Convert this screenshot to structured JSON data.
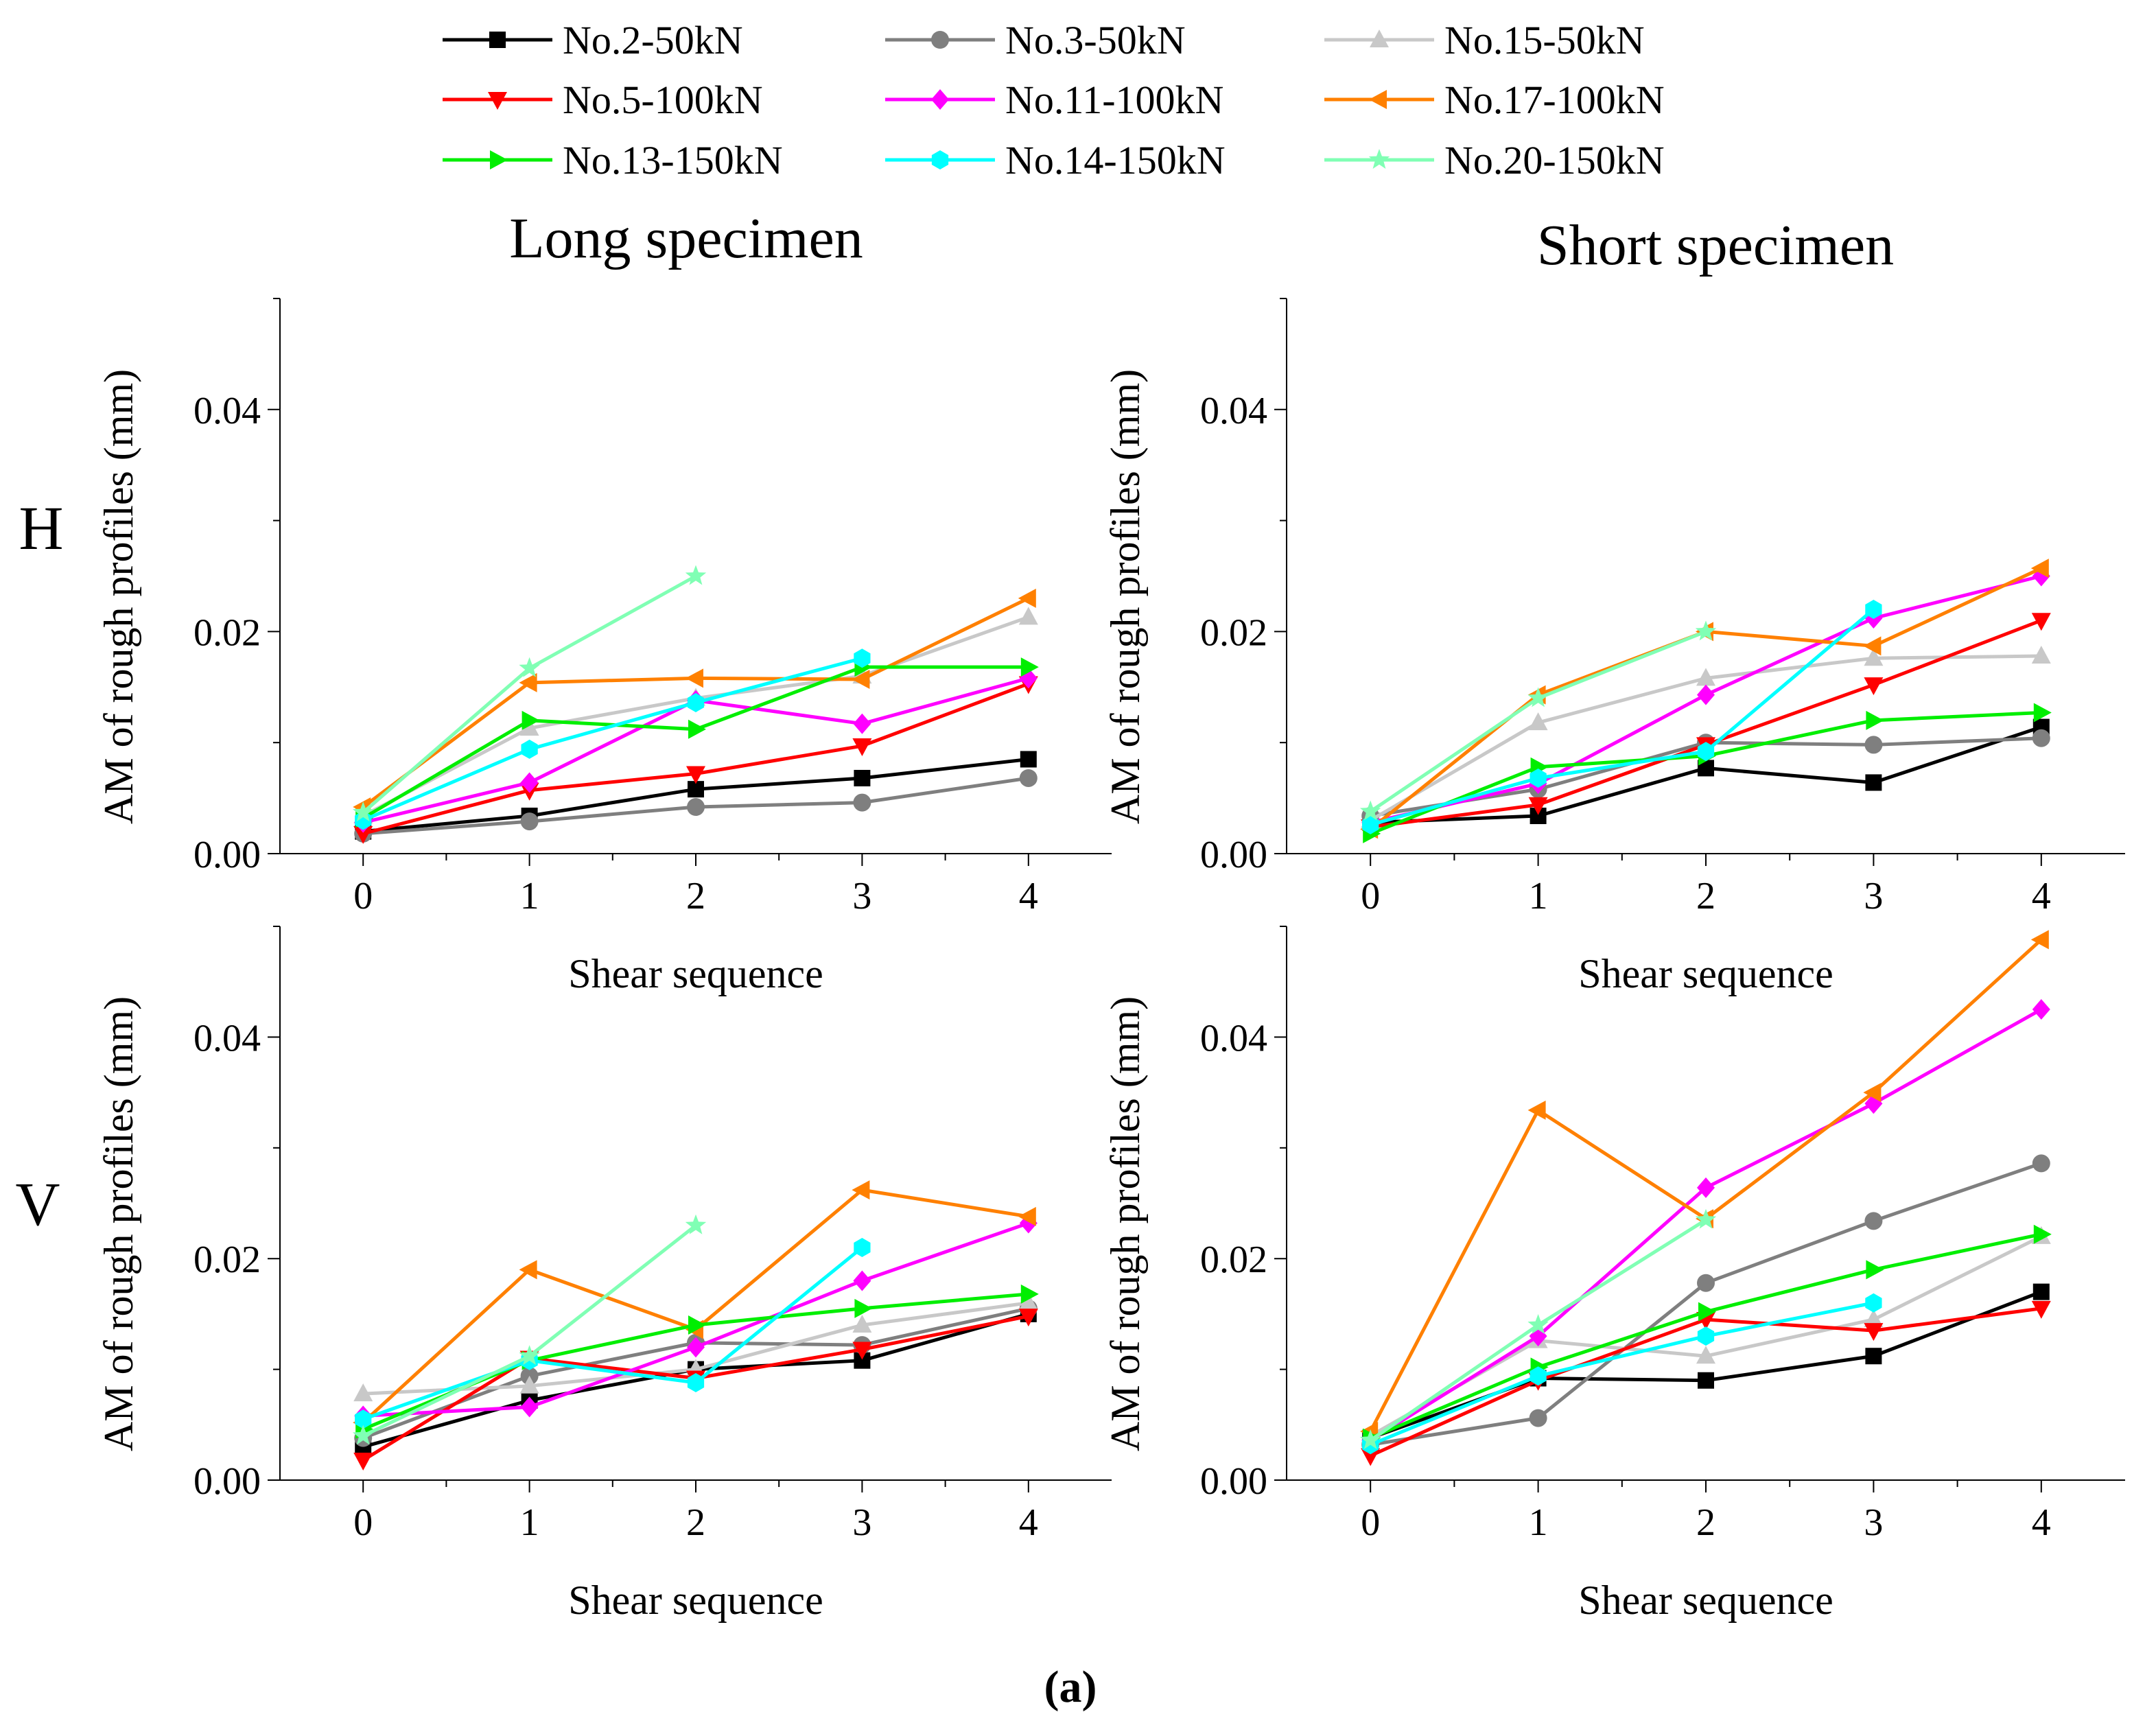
{
  "chart_data": {
    "type": "line",
    "legend_position": "top",
    "legend": [
      {
        "id": "s2",
        "name": "No.2-50kN",
        "color": "#000000",
        "marker": "square"
      },
      {
        "id": "s3",
        "name": "No.3-50kN",
        "color": "#7f7f7f",
        "marker": "circle"
      },
      {
        "id": "s15",
        "name": "No.15-50kN",
        "color": "#c8c8c8",
        "marker": "triangle-up"
      },
      {
        "id": "s5",
        "name": "No.5-100kN",
        "color": "#ff0000",
        "marker": "triangle-down"
      },
      {
        "id": "s11",
        "name": "No.11-100kN",
        "color": "#ff00ff",
        "marker": "diamond"
      },
      {
        "id": "s17",
        "name": "No.17-100kN",
        "color": "#ff8000",
        "marker": "triangle-left"
      },
      {
        "id": "s13",
        "name": "No.13-150kN",
        "color": "#00ee00",
        "marker": "triangle-right"
      },
      {
        "id": "s14",
        "name": "No.14-150kN",
        "color": "#00ffff",
        "marker": "hexagon"
      },
      {
        "id": "s20",
        "name": "No.20-150kN",
        "color": "#80ffb4",
        "marker": "star"
      }
    ],
    "column_titles": [
      "Long specimen",
      "Short specimen"
    ],
    "row_labels": [
      "H",
      "V"
    ],
    "caption": "(a)",
    "panels": [
      {
        "id": "long-h",
        "xlabel": "Shear sequence",
        "ylabel": "AM of rough profiles (mm)",
        "xlim": [
          -0.5,
          4.5
        ],
        "ylim": [
          0,
          0.05
        ],
        "xticks": [
          "0",
          "1",
          "2",
          "3",
          "4"
        ],
        "yticks": [
          "0.00",
          "0.02",
          "0.04"
        ],
        "x": [
          0,
          1,
          2,
          3,
          4
        ],
        "series": [
          {
            "ref": "s2",
            "values": [
              0.002,
              0.0034,
              0.0058,
              0.0068,
              0.0085
            ]
          },
          {
            "ref": "s3",
            "values": [
              0.0018,
              0.0029,
              0.0042,
              0.0046,
              0.0068
            ]
          },
          {
            "ref": "s15",
            "values": [
              0.0034,
              0.0113,
              0.014,
              0.016,
              0.0213
            ]
          },
          {
            "ref": "s5",
            "values": [
              0.0018,
              0.0057,
              0.0072,
              0.0097,
              0.0153
            ]
          },
          {
            "ref": "s11",
            "values": [
              0.0028,
              0.0064,
              0.0138,
              0.0117,
              0.0158
            ]
          },
          {
            "ref": "s17",
            "values": [
              0.0042,
              0.0154,
              0.0158,
              0.0157,
              0.023
            ]
          },
          {
            "ref": "s13",
            "values": [
              0.0032,
              0.012,
              0.0112,
              0.0168,
              0.0168
            ]
          },
          {
            "ref": "s14",
            "values": [
              0.003,
              0.0094,
              0.0136,
              0.0176
            ]
          },
          {
            "ref": "s20",
            "values": [
              0.0037,
              0.0167,
              0.025
            ]
          }
        ]
      },
      {
        "id": "short-h",
        "xlabel": "Shear sequence",
        "ylabel": "AM of rough profiles (mm)",
        "xlim": [
          -0.5,
          4.5
        ],
        "ylim": [
          0,
          0.05
        ],
        "xticks": [
          "0",
          "1",
          "2",
          "3",
          "4"
        ],
        "yticks": [
          "0.00",
          "0.02",
          "0.04"
        ],
        "x": [
          0,
          1,
          2,
          3,
          4
        ],
        "series": [
          {
            "ref": "s2",
            "values": [
              0.0028,
              0.0034,
              0.0077,
              0.0064,
              0.0114
            ]
          },
          {
            "ref": "s3",
            "values": [
              0.0034,
              0.0058,
              0.01,
              0.0098,
              0.0104
            ]
          },
          {
            "ref": "s15",
            "values": [
              0.003,
              0.0118,
              0.0158,
              0.0176,
              0.0178
            ]
          },
          {
            "ref": "s5",
            "values": [
              0.0024,
              0.0044,
              0.0098,
              0.0152,
              0.021
            ]
          },
          {
            "ref": "s11",
            "values": [
              0.0028,
              0.0063,
              0.0143,
              0.0212,
              0.025
            ]
          },
          {
            "ref": "s17",
            "values": [
              0.0022,
              0.0143,
              0.02,
              0.0187,
              0.0257
            ]
          },
          {
            "ref": "s13",
            "values": [
              0.0018,
              0.0078,
              0.0088,
              0.012,
              0.0127
            ]
          },
          {
            "ref": "s14",
            "values": [
              0.0026,
              0.0068,
              0.0092,
              0.022
            ]
          },
          {
            "ref": "s20",
            "values": [
              0.0038,
              0.014,
              0.02
            ]
          }
        ]
      },
      {
        "id": "long-v",
        "xlabel": "Shear sequence",
        "ylabel": "AM of rough profiles (mm)",
        "xlim": [
          -0.5,
          4.5
        ],
        "ylim": [
          0,
          0.05
        ],
        "xticks": [
          "0",
          "1",
          "2",
          "3",
          "4"
        ],
        "yticks": [
          "0.00",
          "0.02",
          "0.04"
        ],
        "x": [
          0,
          1,
          2,
          3,
          4
        ],
        "series": [
          {
            "ref": "s2",
            "values": [
              0.003,
              0.0072,
              0.01,
              0.0108,
              0.015
            ]
          },
          {
            "ref": "s3",
            "values": [
              0.0038,
              0.0094,
              0.0124,
              0.0122,
              0.0155
            ]
          },
          {
            "ref": "s15",
            "values": [
              0.0078,
              0.0085,
              0.01,
              0.014,
              0.016
            ]
          },
          {
            "ref": "s5",
            "values": [
              0.0018,
              0.011,
              0.0092,
              0.0118,
              0.0148
            ]
          },
          {
            "ref": "s11",
            "values": [
              0.0058,
              0.0066,
              0.012,
              0.018,
              0.0232
            ]
          },
          {
            "ref": "s17",
            "values": [
              0.0052,
              0.019,
              0.0136,
              0.0262,
              0.0238
            ]
          },
          {
            "ref": "s13",
            "values": [
              0.0046,
              0.0108,
              0.014,
              0.0155,
              0.0168
            ]
          },
          {
            "ref": "s14",
            "values": [
              0.0055,
              0.0108,
              0.0088,
              0.021
            ]
          },
          {
            "ref": "s20",
            "values": [
              0.004,
              0.0112,
              0.023
            ]
          }
        ]
      },
      {
        "id": "short-v",
        "xlabel": "Shear sequence",
        "ylabel": "AM of rough profiles (mm)",
        "xlim": [
          -0.5,
          4.5
        ],
        "ylim": [
          0,
          0.05
        ],
        "xticks": [
          "0",
          "1",
          "2",
          "3",
          "4"
        ],
        "yticks": [
          "0.00",
          "0.02",
          "0.04"
        ],
        "x": [
          0,
          1,
          2,
          3,
          4
        ],
        "series": [
          {
            "ref": "s2",
            "values": [
              0.0038,
              0.0092,
              0.009,
              0.0112,
              0.017
            ]
          },
          {
            "ref": "s3",
            "values": [
              0.0032,
              0.0056,
              0.0178,
              0.0234,
              0.0286
            ]
          },
          {
            "ref": "s15",
            "values": [
              0.004,
              0.0126,
              0.0112,
              0.0145,
              0.022
            ]
          },
          {
            "ref": "s5",
            "values": [
              0.0022,
              0.009,
              0.0145,
              0.0135,
              0.0155
            ]
          },
          {
            "ref": "s11",
            "values": [
              0.0036,
              0.013,
              0.0264,
              0.034,
              0.0425
            ]
          },
          {
            "ref": "s17",
            "values": [
              0.0044,
              0.0334,
              0.0236,
              0.035,
              0.0488
            ]
          },
          {
            "ref": "s13",
            "values": [
              0.0038,
              0.0102,
              0.0152,
              0.019,
              0.0222
            ]
          },
          {
            "ref": "s14",
            "values": [
              0.0032,
              0.0094,
              0.013,
              0.016
            ]
          },
          {
            "ref": "s20",
            "values": [
              0.0036,
              0.014,
              0.0235
            ]
          }
        ]
      }
    ]
  }
}
